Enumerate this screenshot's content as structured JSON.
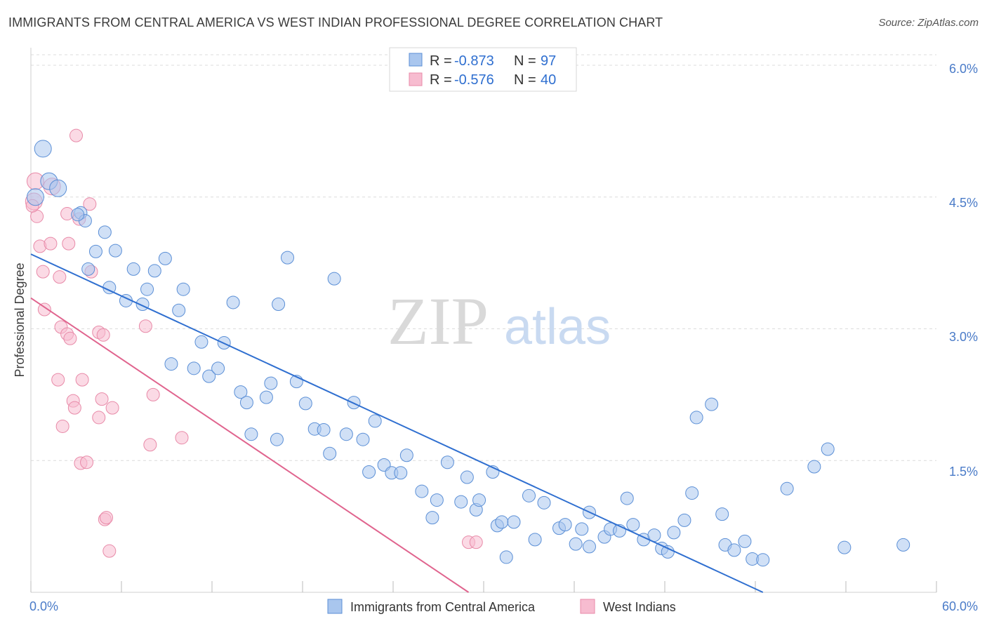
{
  "header": {
    "title": "IMMIGRANTS FROM CENTRAL AMERICA VS WEST INDIAN PROFESSIONAL DEGREE CORRELATION CHART",
    "source": "Source: ZipAtlas.com"
  },
  "watermark": {
    "zip": "ZIP",
    "atlas": "atlas"
  },
  "legend_top": [
    {
      "r_label": "R =",
      "r_value": "-0.873",
      "n_label": "N =",
      "n_value": "97"
    },
    {
      "r_label": "R =",
      "r_value": "-0.576",
      "n_label": "N =",
      "n_value": "40"
    }
  ],
  "chart_data": {
    "type": "scatter",
    "ylabel": "Professional Degree",
    "x_tick_labels": {
      "left": "0.0%",
      "right": "60.0%"
    },
    "y_tick_labels": [
      "1.5%",
      "3.0%",
      "4.5%",
      "6.0%"
    ],
    "y_tick_values": [
      1.5,
      3.0,
      4.5,
      6.0
    ],
    "xlim": [
      0,
      60
    ],
    "ylim": [
      0,
      6.2
    ],
    "grid": true,
    "legend_position": "bottom",
    "colors": {
      "blue_fill": "#a9c6ee",
      "blue_stroke": "#5b8fd6",
      "blue_line": "#2f6fd0",
      "pink_fill": "#f7bcd0",
      "pink_stroke": "#e88aa8",
      "pink_line": "#e0648e"
    },
    "series": [
      {
        "name": "Immigrants from Central America",
        "color": "#5b8fd6",
        "trend": {
          "x0": 0,
          "y0": 3.85,
          "x1": 48.5,
          "y1": 0.0
        },
        "points": [
          [
            0.8,
            5.05
          ],
          [
            1.2,
            4.68
          ],
          [
            1.8,
            4.6
          ],
          [
            3.3,
            4.32
          ],
          [
            3.6,
            4.23
          ],
          [
            4.9,
            4.1
          ],
          [
            4.3,
            3.88
          ],
          [
            5.6,
            3.89
          ],
          [
            3.8,
            3.68
          ],
          [
            6.8,
            3.68
          ],
          [
            8.2,
            3.66
          ],
          [
            8.9,
            3.8
          ],
          [
            5.2,
            3.47
          ],
          [
            7.7,
            3.45
          ],
          [
            10.1,
            3.45
          ],
          [
            6.3,
            3.32
          ],
          [
            7.4,
            3.28
          ],
          [
            9.8,
            3.21
          ],
          [
            13.4,
            3.3
          ],
          [
            17.0,
            3.81
          ],
          [
            16.4,
            3.28
          ],
          [
            20.1,
            3.57
          ],
          [
            11.3,
            2.85
          ],
          [
            12.8,
            2.84
          ],
          [
            9.3,
            2.6
          ],
          [
            10.8,
            2.55
          ],
          [
            11.8,
            2.46
          ],
          [
            12.4,
            2.55
          ],
          [
            13.9,
            2.28
          ],
          [
            14.3,
            2.16
          ],
          [
            15.6,
            2.22
          ],
          [
            15.9,
            2.38
          ],
          [
            17.6,
            2.4
          ],
          [
            18.2,
            2.15
          ],
          [
            21.4,
            2.16
          ],
          [
            14.6,
            1.8
          ],
          [
            16.3,
            1.74
          ],
          [
            18.8,
            1.86
          ],
          [
            19.4,
            1.85
          ],
          [
            20.9,
            1.8
          ],
          [
            22.0,
            1.74
          ],
          [
            22.8,
            1.95
          ],
          [
            19.8,
            1.58
          ],
          [
            22.4,
            1.37
          ],
          [
            23.4,
            1.45
          ],
          [
            23.9,
            1.36
          ],
          [
            24.5,
            1.36
          ],
          [
            24.9,
            1.56
          ],
          [
            25.9,
            1.15
          ],
          [
            26.6,
            0.85
          ],
          [
            26.9,
            1.05
          ],
          [
            27.6,
            1.48
          ],
          [
            28.5,
            1.03
          ],
          [
            28.9,
            1.31
          ],
          [
            29.5,
            0.94
          ],
          [
            29.7,
            1.05
          ],
          [
            30.6,
            1.37
          ],
          [
            30.9,
            0.76
          ],
          [
            31.2,
            0.8
          ],
          [
            32.0,
            0.8
          ],
          [
            31.5,
            0.4
          ],
          [
            33.0,
            1.1
          ],
          [
            33.4,
            0.6
          ],
          [
            34.0,
            1.02
          ],
          [
            35.0,
            0.73
          ],
          [
            35.4,
            0.77
          ],
          [
            36.1,
            0.55
          ],
          [
            36.5,
            0.72
          ],
          [
            37.0,
            0.91
          ],
          [
            37.0,
            0.52
          ],
          [
            38.0,
            0.63
          ],
          [
            38.4,
            0.72
          ],
          [
            39.0,
            0.7
          ],
          [
            39.5,
            1.07
          ],
          [
            39.9,
            0.77
          ],
          [
            40.6,
            0.6
          ],
          [
            41.3,
            0.65
          ],
          [
            41.8,
            0.5
          ],
          [
            42.2,
            0.46
          ],
          [
            42.6,
            0.68
          ],
          [
            43.3,
            0.82
          ],
          [
            43.8,
            1.13
          ],
          [
            44.1,
            1.99
          ],
          [
            45.1,
            2.14
          ],
          [
            45.8,
            0.89
          ],
          [
            46.0,
            0.54
          ],
          [
            46.6,
            0.48
          ],
          [
            47.3,
            0.58
          ],
          [
            47.8,
            0.38
          ],
          [
            48.5,
            0.37
          ],
          [
            50.1,
            1.18
          ],
          [
            51.9,
            1.43
          ],
          [
            52.8,
            1.63
          ],
          [
            53.9,
            0.51
          ],
          [
            57.8,
            0.54
          ],
          [
            0.3,
            4.5
          ],
          [
            3.1,
            4.3
          ]
        ]
      },
      {
        "name": "West Indians",
        "color": "#e88aa8",
        "trend": {
          "x0": 0,
          "y0": 3.35,
          "x1": 29.0,
          "y1": 0.0
        },
        "points": [
          [
            0.2,
            4.45
          ],
          [
            0.3,
            4.68
          ],
          [
            0.4,
            4.28
          ],
          [
            1.4,
            4.62
          ],
          [
            2.4,
            4.31
          ],
          [
            0.6,
            3.94
          ],
          [
            1.3,
            3.97
          ],
          [
            2.5,
            3.97
          ],
          [
            3.2,
            4.25
          ],
          [
            3.0,
            5.2
          ],
          [
            3.9,
            4.42
          ],
          [
            0.8,
            3.65
          ],
          [
            1.9,
            3.59
          ],
          [
            4.0,
            3.65
          ],
          [
            0.9,
            3.22
          ],
          [
            2.0,
            3.02
          ],
          [
            2.4,
            2.94
          ],
          [
            2.6,
            2.89
          ],
          [
            4.5,
            2.96
          ],
          [
            4.8,
            2.93
          ],
          [
            7.6,
            3.03
          ],
          [
            1.8,
            2.42
          ],
          [
            3.4,
            2.42
          ],
          [
            2.8,
            2.18
          ],
          [
            2.9,
            2.1
          ],
          [
            4.7,
            2.2
          ],
          [
            5.4,
            2.1
          ],
          [
            8.1,
            2.25
          ],
          [
            4.5,
            1.99
          ],
          [
            2.1,
            1.89
          ],
          [
            7.9,
            1.68
          ],
          [
            10.0,
            1.76
          ],
          [
            3.3,
            1.47
          ],
          [
            3.7,
            1.48
          ],
          [
            4.9,
            0.83
          ],
          [
            5.0,
            0.85
          ],
          [
            5.2,
            0.47
          ],
          [
            29.0,
            0.57
          ],
          [
            29.5,
            0.57
          ],
          [
            0.1,
            4.4
          ]
        ]
      }
    ]
  },
  "legend_bottom": [
    {
      "label": "Immigrants from Central America"
    },
    {
      "label": "West Indians"
    }
  ]
}
